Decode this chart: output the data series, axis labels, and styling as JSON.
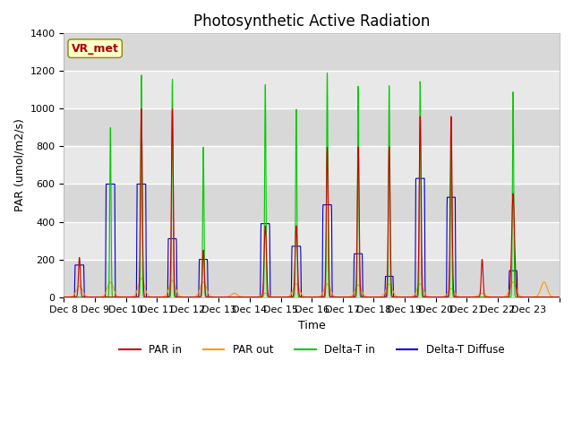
{
  "title": "Photosynthetic Active Radiation",
  "ylabel": "PAR (umol/m2/s)",
  "xlabel": "Time",
  "ylim": [
    0,
    1400
  ],
  "line_colors": {
    "PAR_in": "#cc0000",
    "PAR_out": "#ff9900",
    "Delta_T_in": "#00cc00",
    "Delta_T_Diffuse": "#0000cc"
  },
  "legend_labels": [
    "PAR in",
    "PAR out",
    "Delta-T in",
    "Delta-T Diffuse"
  ],
  "annotation_text": "VR_met",
  "annotation_color": "#aa0000",
  "annotation_bg": "#ffffcc",
  "annotation_border": "#888800",
  "plot_bg": "#e8e8e8",
  "title_fontsize": 12,
  "label_fontsize": 9,
  "tick_fontsize": 8,
  "n_days": 16,
  "start_day": 8,
  "ppd": 144,
  "day_peaks": {
    "PAR_in": [
      210,
      0,
      1000,
      1000,
      250,
      0,
      380,
      380,
      800,
      800,
      800,
      960,
      960,
      200,
      550,
      0
    ],
    "PAR_out": [
      60,
      80,
      100,
      90,
      80,
      20,
      20,
      70,
      70,
      65,
      70,
      70,
      45,
      20,
      80,
      80
    ],
    "Delta_T_in": [
      0,
      900,
      1180,
      1160,
      800,
      0,
      1140,
      1010,
      1205,
      1130,
      1130,
      1150,
      850,
      0,
      1090,
      0
    ],
    "Delta_T_Diffuse": [
      170,
      600,
      600,
      310,
      200,
      0,
      390,
      270,
      490,
      230,
      110,
      630,
      530,
      0,
      140,
      0
    ]
  },
  "day_widths": {
    "PAR_in": [
      0.1,
      0.1,
      0.1,
      0.1,
      0.1,
      0.1,
      0.12,
      0.12,
      0.1,
      0.1,
      0.1,
      0.1,
      0.1,
      0.1,
      0.15,
      0.1
    ],
    "Delta_T_in": [
      0.08,
      0.08,
      0.08,
      0.08,
      0.08,
      0.08,
      0.08,
      0.08,
      0.08,
      0.08,
      0.08,
      0.08,
      0.08,
      0.08,
      0.08,
      0.08
    ],
    "Delta_T_Diffuse": [
      0.32,
      0.32,
      0.32,
      0.3,
      0.3,
      0.3,
      0.32,
      0.32,
      0.32,
      0.3,
      0.28,
      0.32,
      0.3,
      0.3,
      0.28,
      0.28
    ],
    "PAR_out": [
      0.28,
      0.28,
      0.28,
      0.28,
      0.28,
      0.28,
      0.28,
      0.28,
      0.28,
      0.28,
      0.28,
      0.28,
      0.28,
      0.28,
      0.28,
      0.28
    ]
  }
}
